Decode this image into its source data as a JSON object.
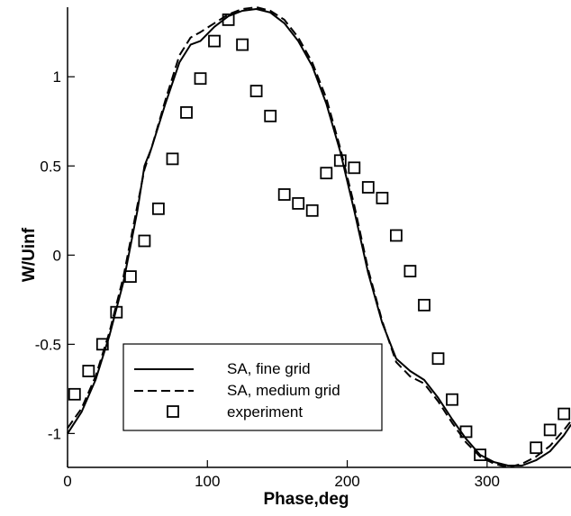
{
  "chart_data": {
    "type": "line",
    "title": "",
    "xlabel": "Phase,deg",
    "ylabel": "W/Uinf",
    "xlim": [
      0,
      360
    ],
    "ylim": [
      -1.19,
      1.39
    ],
    "x_ticks": [
      0,
      100,
      200,
      300
    ],
    "y_ticks": [
      -1,
      -0.5,
      0,
      0.5,
      1
    ],
    "x_tick_labels": [
      "0",
      "100",
      "200",
      "300"
    ],
    "y_tick_labels": [
      "-1",
      "-0.5",
      "0",
      "0.5",
      "1"
    ],
    "grid": false,
    "legend_position": "lower-left",
    "series": [
      {
        "name": "SA, fine grid",
        "style": "solid",
        "color": "#000000",
        "points": [
          [
            0,
            -1.0
          ],
          [
            10,
            -0.88
          ],
          [
            20,
            -0.7
          ],
          [
            30,
            -0.45
          ],
          [
            40,
            -0.15
          ],
          [
            50,
            0.25
          ],
          [
            55,
            0.5
          ],
          [
            60,
            0.6
          ],
          [
            70,
            0.85
          ],
          [
            80,
            1.08
          ],
          [
            88,
            1.18
          ],
          [
            95,
            1.2
          ],
          [
            105,
            1.28
          ],
          [
            115,
            1.34
          ],
          [
            125,
            1.37
          ],
          [
            135,
            1.38
          ],
          [
            145,
            1.36
          ],
          [
            155,
            1.3
          ],
          [
            165,
            1.2
          ],
          [
            175,
            1.06
          ],
          [
            185,
            0.85
          ],
          [
            195,
            0.58
          ],
          [
            205,
            0.25
          ],
          [
            215,
            -0.1
          ],
          [
            225,
            -0.38
          ],
          [
            235,
            -0.58
          ],
          [
            245,
            -0.65
          ],
          [
            255,
            -0.7
          ],
          [
            265,
            -0.8
          ],
          [
            275,
            -0.92
          ],
          [
            285,
            -1.03
          ],
          [
            295,
            -1.12
          ],
          [
            305,
            -1.16
          ],
          [
            315,
            -1.18
          ],
          [
            325,
            -1.18
          ],
          [
            335,
            -1.15
          ],
          [
            345,
            -1.1
          ],
          [
            355,
            -1.01
          ],
          [
            360,
            -0.95
          ]
        ]
      },
      {
        "name": "SA, medium grid",
        "style": "dashed",
        "color": "#000000",
        "points": [
          [
            0,
            -0.97
          ],
          [
            10,
            -0.86
          ],
          [
            20,
            -0.68
          ],
          [
            30,
            -0.43
          ],
          [
            40,
            -0.12
          ],
          [
            50,
            0.28
          ],
          [
            55,
            0.48
          ],
          [
            60,
            0.6
          ],
          [
            70,
            0.87
          ],
          [
            80,
            1.12
          ],
          [
            88,
            1.22
          ],
          [
            95,
            1.25
          ],
          [
            105,
            1.3
          ],
          [
            115,
            1.35
          ],
          [
            125,
            1.38
          ],
          [
            135,
            1.39
          ],
          [
            145,
            1.37
          ],
          [
            155,
            1.32
          ],
          [
            165,
            1.22
          ],
          [
            175,
            1.08
          ],
          [
            185,
            0.88
          ],
          [
            195,
            0.6
          ],
          [
            205,
            0.28
          ],
          [
            215,
            -0.08
          ],
          [
            225,
            -0.37
          ],
          [
            235,
            -0.6
          ],
          [
            245,
            -0.68
          ],
          [
            255,
            -0.72
          ],
          [
            265,
            -0.82
          ],
          [
            275,
            -0.94
          ],
          [
            285,
            -1.05
          ],
          [
            295,
            -1.13
          ],
          [
            305,
            -1.17
          ],
          [
            315,
            -1.19
          ],
          [
            325,
            -1.17
          ],
          [
            335,
            -1.13
          ],
          [
            345,
            -1.07
          ],
          [
            355,
            -0.98
          ],
          [
            360,
            -0.93
          ]
        ]
      },
      {
        "name": "experiment",
        "style": "markers",
        "marker": "open-square",
        "color": "#000000",
        "points": [
          [
            5,
            -0.78
          ],
          [
            15,
            -0.65
          ],
          [
            25,
            -0.5
          ],
          [
            35,
            -0.32
          ],
          [
            45,
            -0.12
          ],
          [
            55,
            0.08
          ],
          [
            65,
            0.26
          ],
          [
            75,
            0.54
          ],
          [
            85,
            0.8
          ],
          [
            95,
            0.99
          ],
          [
            105,
            1.2
          ],
          [
            115,
            1.32
          ],
          [
            125,
            1.18
          ],
          [
            135,
            0.92
          ],
          [
            145,
            0.78
          ],
          [
            155,
            0.34
          ],
          [
            165,
            0.29
          ],
          [
            175,
            0.25
          ],
          [
            185,
            0.46
          ],
          [
            195,
            0.53
          ],
          [
            205,
            0.49
          ],
          [
            215,
            0.38
          ],
          [
            225,
            0.32
          ],
          [
            235,
            0.11
          ],
          [
            245,
            -0.09
          ],
          [
            255,
            -0.28
          ],
          [
            265,
            -0.58
          ],
          [
            275,
            -0.81
          ],
          [
            285,
            -0.99
          ],
          [
            295,
            -1.12
          ],
          [
            335,
            -1.08
          ],
          [
            345,
            -0.98
          ],
          [
            355,
            -0.89
          ]
        ]
      }
    ]
  }
}
